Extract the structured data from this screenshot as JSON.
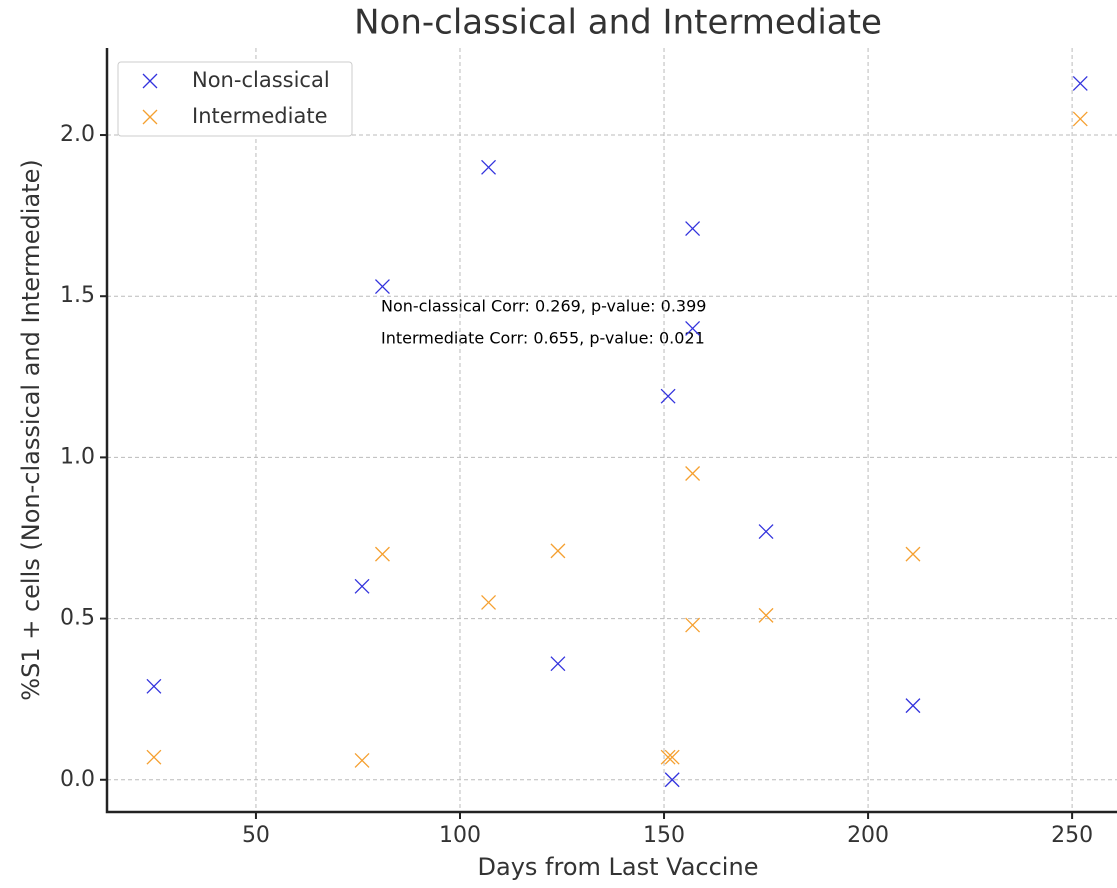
{
  "chart_data": {
    "type": "scatter",
    "title": "Non-classical and Intermediate",
    "xlabel": "Days from Last Vaccine",
    "ylabel": "%S1 + cells (Non-classical and Intermediate)",
    "xlim": [
      13.5,
      261
    ],
    "ylim": [
      -0.1,
      2.27
    ],
    "xticks": [
      50,
      100,
      150,
      200,
      250
    ],
    "yticks": [
      {
        "value": 0,
        "label": "0.0"
      },
      {
        "value": 0.5,
        "label": "0.5"
      },
      {
        "value": 1,
        "label": "1.0"
      },
      {
        "value": 1.5,
        "label": "1.5"
      },
      {
        "value": 2,
        "label": "2.0"
      }
    ],
    "grid": true,
    "legend": "upper left",
    "series": [
      {
        "name": "Non-classical",
        "color": "#3333dd",
        "x": [
          25,
          76,
          81,
          107,
          124,
          151,
          152,
          157,
          157,
          175,
          211,
          252
        ],
        "values": [
          0.29,
          0.6,
          1.53,
          1.9,
          0.36,
          1.19,
          0.0,
          1.71,
          1.4,
          0.77,
          0.23,
          2.16
        ]
      },
      {
        "name": "Intermediate",
        "color": "#f5a030",
        "x": [
          25,
          76,
          81,
          107,
          124,
          151,
          152,
          157,
          157,
          175,
          211,
          252
        ],
        "values": [
          0.07,
          0.06,
          0.7,
          0.55,
          0.71,
          0.07,
          0.07,
          0.95,
          0.48,
          0.51,
          0.7,
          2.05
        ]
      }
    ],
    "annotations": [
      "Non-classical Corr: 0.269, p-value: 0.399",
      "Intermediate Corr: 0.655, p-value: 0.021"
    ]
  }
}
